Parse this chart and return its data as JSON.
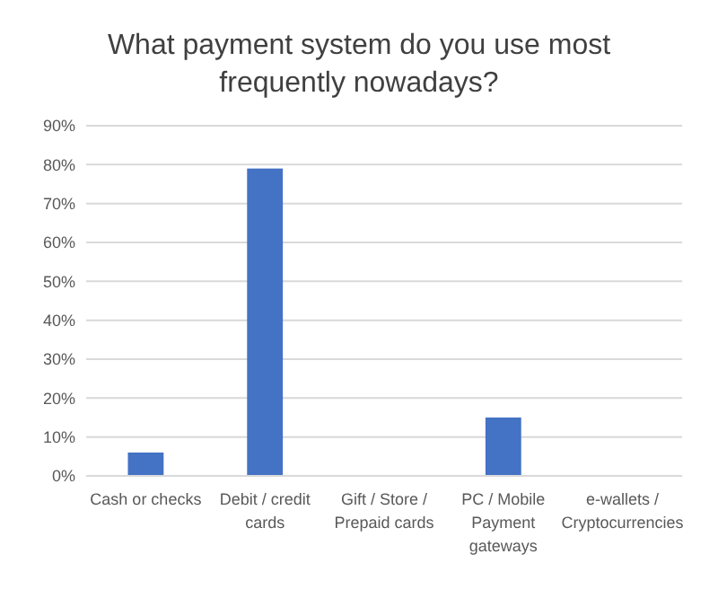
{
  "chart_data": {
    "type": "bar",
    "title": "What payment system do you use most frequently nowadays?",
    "categories": [
      "Cash or checks",
      "Debit / credit cards",
      "Gift / Store / Prepaid cards",
      "PC / Mobile Payment gateways",
      "e-wallets / Cryptocurrencies"
    ],
    "values": [
      6,
      79,
      0,
      15,
      0
    ],
    "color": "#4472c4",
    "ylim": [
      0,
      90
    ],
    "yticks": [
      {
        "value": 0,
        "label": "0%"
      },
      {
        "value": 10,
        "label": "10%"
      },
      {
        "value": 20,
        "label": "20%"
      },
      {
        "value": 30,
        "label": "30%"
      },
      {
        "value": 40,
        "label": "40%"
      },
      {
        "value": 50,
        "label": "50%"
      },
      {
        "value": 60,
        "label": "60%"
      },
      {
        "value": 70,
        "label": "70%"
      },
      {
        "value": 80,
        "label": "80%"
      },
      {
        "value": 90,
        "label": "90%"
      }
    ],
    "grid": "y"
  }
}
